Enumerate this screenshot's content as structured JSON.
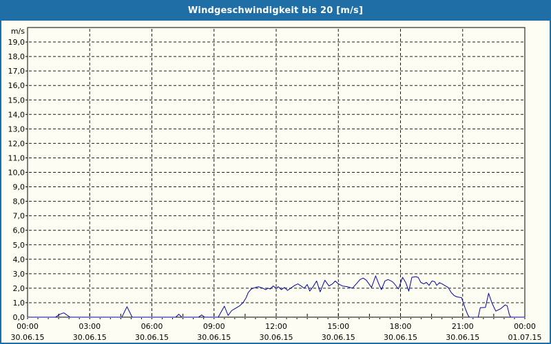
{
  "title": "Windgeschwindigkeit bis 20 [m/s]",
  "colors": {
    "titlebar": "#1f6ea6",
    "window_border": "#1f6ea6",
    "background": "#fdfdf4",
    "plot_border": "#000000",
    "grid": "#1c1c1c",
    "line": "#0000a0",
    "label_text": "#000000",
    "title_text": "#ffffff"
  },
  "chart_data": {
    "type": "line",
    "title": "Windgeschwindigkeit bis 20 [m/s]",
    "unit_label": "m/s",
    "grid": true,
    "ylim": [
      0,
      20
    ],
    "ytick_step": 1.0,
    "ytick_labels": [
      "0,0",
      "1,0",
      "2,0",
      "3,0",
      "4,0",
      "5,0",
      "6,0",
      "7,0",
      "8,0",
      "9,0",
      "10,0",
      "11,0",
      "12,0",
      "13,0",
      "14,0",
      "15,0",
      "16,0",
      "17,0",
      "18,0",
      "19,0"
    ],
    "x_hours_range": [
      0,
      24
    ],
    "x_major_tick_hours": 1.5,
    "x_minor_tick_hours": 0.5,
    "xticks": [
      {
        "hour": 0,
        "time": "00:00",
        "date": "30.06.15"
      },
      {
        "hour": 3,
        "time": "03:00",
        "date": "30.06.15"
      },
      {
        "hour": 6,
        "time": "06:00",
        "date": "30.06.15"
      },
      {
        "hour": 9,
        "time": "09:00",
        "date": "30.06.15"
      },
      {
        "hour": 12,
        "time": "12:00",
        "date": "30.06.15"
      },
      {
        "hour": 15,
        "time": "15:00",
        "date": "30.06.15"
      },
      {
        "hour": 18,
        "time": "18:00",
        "date": "30.06.15"
      },
      {
        "hour": 21,
        "time": "21:00",
        "date": "30.06.15"
      },
      {
        "hour": 24,
        "time": "00:00",
        "date": "01.07.15"
      }
    ],
    "series": [
      {
        "name": "Windgeschwindigkeit",
        "points": [
          [
            0,
            0
          ],
          [
            1.35,
            0
          ],
          [
            1.55,
            0.2
          ],
          [
            1.75,
            0.3
          ],
          [
            1.95,
            0.1
          ],
          [
            2.05,
            0
          ],
          [
            4.55,
            0
          ],
          [
            4.8,
            0.72
          ],
          [
            5.05,
            0
          ],
          [
            7.15,
            0
          ],
          [
            7.3,
            0.2
          ],
          [
            7.45,
            0
          ],
          [
            8.25,
            0
          ],
          [
            8.4,
            0.15
          ],
          [
            8.55,
            0
          ],
          [
            9.2,
            0
          ],
          [
            9.5,
            0.76
          ],
          [
            9.68,
            0.12
          ],
          [
            9.85,
            0.45
          ],
          [
            10.05,
            0.62
          ],
          [
            10.25,
            0.8
          ],
          [
            10.4,
            1.0
          ],
          [
            10.55,
            1.35
          ],
          [
            10.65,
            1.7
          ],
          [
            10.8,
            1.95
          ],
          [
            11.0,
            2.05
          ],
          [
            11.15,
            2.1
          ],
          [
            11.35,
            2.0
          ],
          [
            11.5,
            1.9
          ],
          [
            11.6,
            2.0
          ],
          [
            11.72,
            1.95
          ],
          [
            11.85,
            2.15
          ],
          [
            12.0,
            2.0
          ],
          [
            12.1,
            2.1
          ],
          [
            12.25,
            1.9
          ],
          [
            12.4,
            2.05
          ],
          [
            12.55,
            1.85
          ],
          [
            12.75,
            2.05
          ],
          [
            12.9,
            2.2
          ],
          [
            13.05,
            2.3
          ],
          [
            13.2,
            2.15
          ],
          [
            13.35,
            2.0
          ],
          [
            13.5,
            2.25
          ],
          [
            13.62,
            1.8
          ],
          [
            13.78,
            2.1
          ],
          [
            13.95,
            2.5
          ],
          [
            14.12,
            1.75
          ],
          [
            14.35,
            2.55
          ],
          [
            14.55,
            2.15
          ],
          [
            14.72,
            2.3
          ],
          [
            14.85,
            2.5
          ],
          [
            15.0,
            2.3
          ],
          [
            15.2,
            2.15
          ],
          [
            15.45,
            2.1
          ],
          [
            15.68,
            2.0
          ],
          [
            16.05,
            2.6
          ],
          [
            16.2,
            2.7
          ],
          [
            16.35,
            2.55
          ],
          [
            16.6,
            2.05
          ],
          [
            16.8,
            2.85
          ],
          [
            16.95,
            2.3
          ],
          [
            17.08,
            1.9
          ],
          [
            17.25,
            2.5
          ],
          [
            17.4,
            2.6
          ],
          [
            17.55,
            2.5
          ],
          [
            17.65,
            2.4
          ],
          [
            17.9,
            1.95
          ],
          [
            18.1,
            2.75
          ],
          [
            18.25,
            2.4
          ],
          [
            18.4,
            1.8
          ],
          [
            18.55,
            2.75
          ],
          [
            18.72,
            2.8
          ],
          [
            18.85,
            2.75
          ],
          [
            18.98,
            2.4
          ],
          [
            19.12,
            2.3
          ],
          [
            19.25,
            2.4
          ],
          [
            19.38,
            2.2
          ],
          [
            19.52,
            2.5
          ],
          [
            19.65,
            2.45
          ],
          [
            19.75,
            2.2
          ],
          [
            19.88,
            2.38
          ],
          [
            20.0,
            2.3
          ],
          [
            20.12,
            2.2
          ],
          [
            20.3,
            2.05
          ],
          [
            20.45,
            1.7
          ],
          [
            20.58,
            1.5
          ],
          [
            20.72,
            1.4
          ],
          [
            20.95,
            1.35
          ],
          [
            21.05,
            0.9
          ],
          [
            21.15,
            0.5
          ],
          [
            21.25,
            0.15
          ],
          [
            21.32,
            0
          ],
          [
            21.75,
            0
          ],
          [
            21.85,
            0.65
          ],
          [
            22.1,
            0.67
          ],
          [
            22.25,
            1.65
          ],
          [
            22.42,
            0.95
          ],
          [
            22.6,
            0.42
          ],
          [
            22.85,
            0.6
          ],
          [
            23.05,
            0.85
          ],
          [
            23.15,
            0.78
          ],
          [
            23.25,
            0.2
          ],
          [
            23.32,
            0
          ],
          [
            24,
            0
          ]
        ]
      }
    ]
  }
}
